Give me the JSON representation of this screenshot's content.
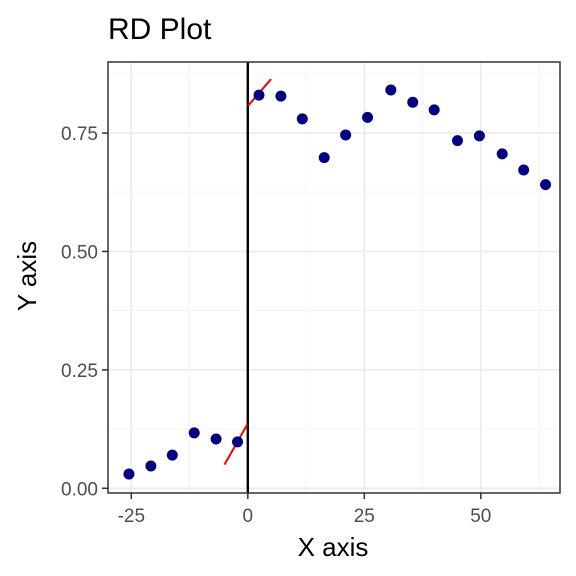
{
  "chart_data": {
    "type": "scatter",
    "title": "RD Plot",
    "xlabel": "X axis",
    "ylabel": "Y axis",
    "xlim": [
      -30,
      67
    ],
    "ylim": [
      -0.01,
      0.9
    ],
    "x_ticks": [
      -25,
      0,
      25,
      50
    ],
    "x_tick_labels": [
      "-25",
      "0",
      "25",
      "50"
    ],
    "y_ticks": [
      0.0,
      0.25,
      0.5,
      0.75
    ],
    "y_tick_labels": [
      "0.00",
      "0.25",
      "0.50",
      "0.75"
    ],
    "grid": true,
    "cutoff": 0,
    "points": [
      {
        "x": -25.5,
        "y": 0.03
      },
      {
        "x": -20.8,
        "y": 0.047
      },
      {
        "x": -16.2,
        "y": 0.07
      },
      {
        "x": -11.5,
        "y": 0.117
      },
      {
        "x": -6.8,
        "y": 0.104
      },
      {
        "x": -2.2,
        "y": 0.098
      },
      {
        "x": 2.4,
        "y": 0.83
      },
      {
        "x": 7.1,
        "y": 0.828
      },
      {
        "x": 11.7,
        "y": 0.78
      },
      {
        "x": 16.4,
        "y": 0.698
      },
      {
        "x": 21.0,
        "y": 0.746
      },
      {
        "x": 25.7,
        "y": 0.783
      },
      {
        "x": 30.7,
        "y": 0.841
      },
      {
        "x": 35.4,
        "y": 0.815
      },
      {
        "x": 40.0,
        "y": 0.799
      },
      {
        "x": 45.0,
        "y": 0.734
      },
      {
        "x": 49.7,
        "y": 0.744
      },
      {
        "x": 54.6,
        "y": 0.706
      },
      {
        "x": 59.2,
        "y": 0.672
      },
      {
        "x": 63.9,
        "y": 0.641
      }
    ],
    "fit_lines": [
      {
        "x1": -5.0,
        "y1": 0.05,
        "x2": -0.1,
        "y2": 0.135
      },
      {
        "x1": 0.1,
        "y1": 0.808,
        "x2": 5.0,
        "y2": 0.864
      }
    ],
    "colors": {
      "points": "#000080",
      "fit": "#ff0000",
      "cutoff": "#000000",
      "grid_major": "#ebebeb",
      "grid_minor": "#f5f5f5",
      "border": "#333333"
    }
  }
}
